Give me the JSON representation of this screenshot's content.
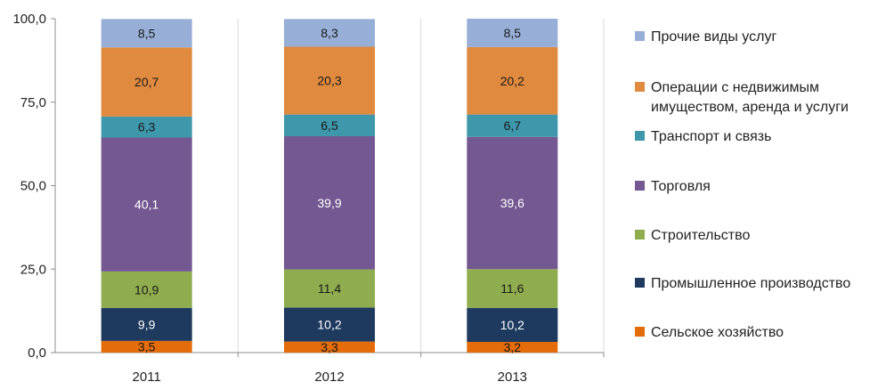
{
  "chart_data": {
    "type": "bar",
    "stacked": true,
    "categories": [
      "2011",
      "2012",
      "2013"
    ],
    "series": [
      {
        "name": "Сельское хозяйство",
        "color": "#E46C0A",
        "label_color": "#1a1a1a",
        "values": [
          3.5,
          3.3,
          3.2
        ],
        "labels": [
          "3,5",
          "3,3",
          "3,2"
        ]
      },
      {
        "name": "Промышленное производство",
        "color": "#1F3A5F",
        "label_color": "#ffffff",
        "values": [
          9.9,
          10.2,
          10.2
        ],
        "labels": [
          "9,9",
          "10,2",
          "10,2"
        ]
      },
      {
        "name": "Строительство",
        "color": "#8FAC4E",
        "label_color": "#1a1a1a",
        "values": [
          10.9,
          11.4,
          11.6
        ],
        "labels": [
          "10,9",
          "11,4",
          "11,6"
        ]
      },
      {
        "name": "Торговля",
        "color": "#735891",
        "label_color": "#ffffff",
        "values": [
          40.1,
          39.9,
          39.6
        ],
        "labels": [
          "40,1",
          "39,9",
          "39,6"
        ]
      },
      {
        "name": "Транспорт и связь",
        "color": "#3F97AB",
        "label_color": "#1a1a1a",
        "values": [
          6.3,
          6.5,
          6.7
        ],
        "labels": [
          "6,3",
          "6,5",
          "6,7"
        ]
      },
      {
        "name": "Операции с недвижимым имуществом, аренда и услуги",
        "name_lines": [
          "Операции с недвижимым",
          "имуществом, аренда и услуги"
        ],
        "color": "#E08A3F",
        "label_color": "#1a1a1a",
        "values": [
          20.7,
          20.3,
          20.2
        ],
        "labels": [
          "20,7",
          "20,3",
          "20,2"
        ]
      },
      {
        "name": "Прочие виды услуг",
        "color": "#97AED6",
        "label_color": "#1a1a1a",
        "values": [
          8.5,
          8.3,
          8.5
        ],
        "labels": [
          "8,5",
          "8,3",
          "8,5"
        ]
      }
    ],
    "ylim": [
      0,
      100
    ],
    "yticks": [
      0,
      25,
      50,
      75,
      100
    ],
    "ytick_labels": [
      "0,0",
      "25,0",
      "50,0",
      "75,0",
      "100,0"
    ],
    "grid": "vertical separators",
    "legend_position": "right",
    "title": "",
    "xlabel": "",
    "ylabel": ""
  }
}
